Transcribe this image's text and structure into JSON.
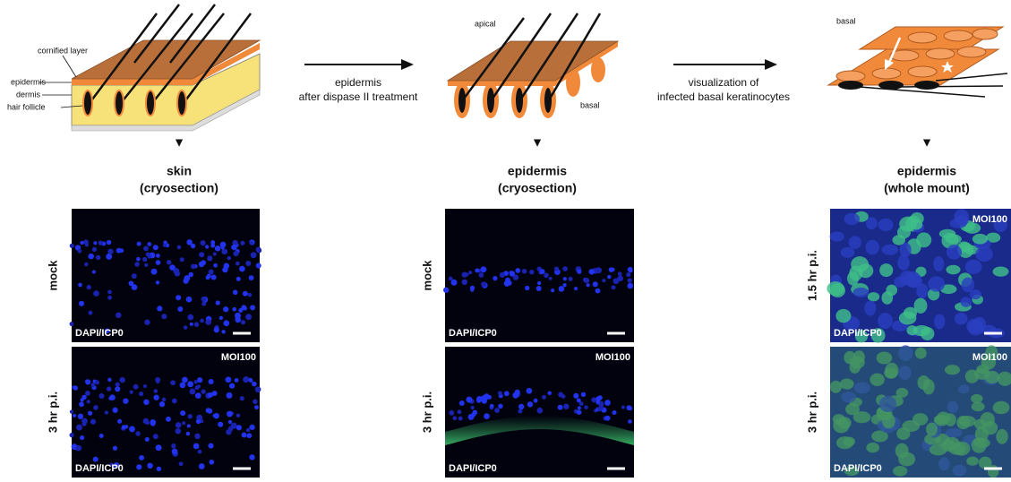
{
  "schematics": [
    {
      "labels": [
        "cornified layer",
        "epidermis",
        "dermis",
        "hair follicle"
      ]
    },
    {
      "labels": [
        "apical",
        "basal"
      ]
    },
    {
      "labels": [
        "basal"
      ]
    }
  ],
  "arrows": [
    {
      "lines": [
        "epidermis",
        "after dispase II treatment"
      ]
    },
    {
      "lines": [
        "visualization of",
        "infected basal keratinocytes"
      ]
    }
  ],
  "columns": [
    {
      "heading": [
        "skin",
        "(cryosection)"
      ],
      "panels": [
        {
          "row_label": "mock",
          "stain": "DAPI/ICP0"
        },
        {
          "row_label": "3 hr p.i.",
          "stain": "DAPI/ICP0",
          "moi": "MOI100"
        }
      ]
    },
    {
      "heading": [
        "epidermis",
        "(cryosection)"
      ],
      "panels": [
        {
          "row_label": "mock",
          "stain": "DAPI/ICP0"
        },
        {
          "row_label": "3 hr p.i.",
          "stain": "DAPI/ICP0",
          "moi": "MOI100"
        }
      ]
    },
    {
      "heading": [
        "epidermis",
        "(whole mount)"
      ],
      "panels": [
        {
          "row_label": "1.5 hr p.i.",
          "stain": "DAPI/ICP0",
          "moi": "MOI100"
        },
        {
          "row_label": "3 hr p.i.",
          "stain": "DAPI/ICP0",
          "moi": "MOI100"
        }
      ]
    }
  ]
}
